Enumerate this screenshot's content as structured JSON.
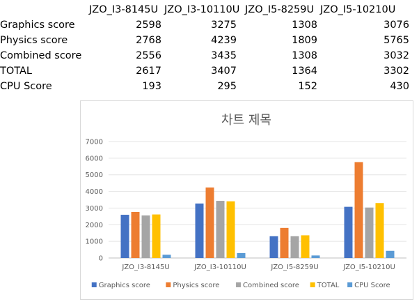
{
  "table": {
    "columns": [
      "JZO_I3-8145U",
      "JZO_I3-10110U",
      "JZO_I5-8259U",
      "JZO_I5-10210U"
    ],
    "rows": [
      {
        "label": "Graphics score",
        "values": [
          "2598",
          "3275",
          "1308",
          "3076"
        ]
      },
      {
        "label": "Physics score",
        "values": [
          "2768",
          "4239",
          "1809",
          "5765"
        ]
      },
      {
        "label": "Combined score",
        "values": [
          "2556",
          "3435",
          "1308",
          "3032"
        ]
      },
      {
        "label": "TOTAL",
        "values": [
          "2617",
          "3407",
          "1364",
          "3302"
        ]
      },
      {
        "label": "CPU Score",
        "values": [
          "193",
          "295",
          "152",
          "430"
        ]
      }
    ]
  },
  "chart_data": {
    "type": "bar",
    "title": "차트 제목",
    "xlabel": "",
    "ylabel": "",
    "categories": [
      "JZO_I3-8145U",
      "JZO_I3-10110U",
      "JZO_I5-8259U",
      "JZO_I5-10210U"
    ],
    "series": [
      {
        "name": "Graphics score",
        "color": "#4472c4",
        "values": [
          2598,
          3275,
          1308,
          3076
        ]
      },
      {
        "name": "Physics score",
        "color": "#ed7d31",
        "values": [
          2768,
          4239,
          1809,
          5765
        ]
      },
      {
        "name": "Combined score",
        "color": "#a5a5a5",
        "values": [
          2556,
          3435,
          1308,
          3032
        ]
      },
      {
        "name": "TOTAL",
        "color": "#ffc000",
        "values": [
          2617,
          3407,
          1364,
          3302
        ]
      },
      {
        "name": "CPU Score",
        "color": "#5b9bd5",
        "values": [
          193,
          295,
          152,
          430
        ]
      }
    ],
    "yticks": [
      "0",
      "1000",
      "2000",
      "3000",
      "4000",
      "5000",
      "6000",
      "7000"
    ],
    "ylim": [
      0,
      7000
    ],
    "grid": true,
    "legend": "bottom"
  }
}
